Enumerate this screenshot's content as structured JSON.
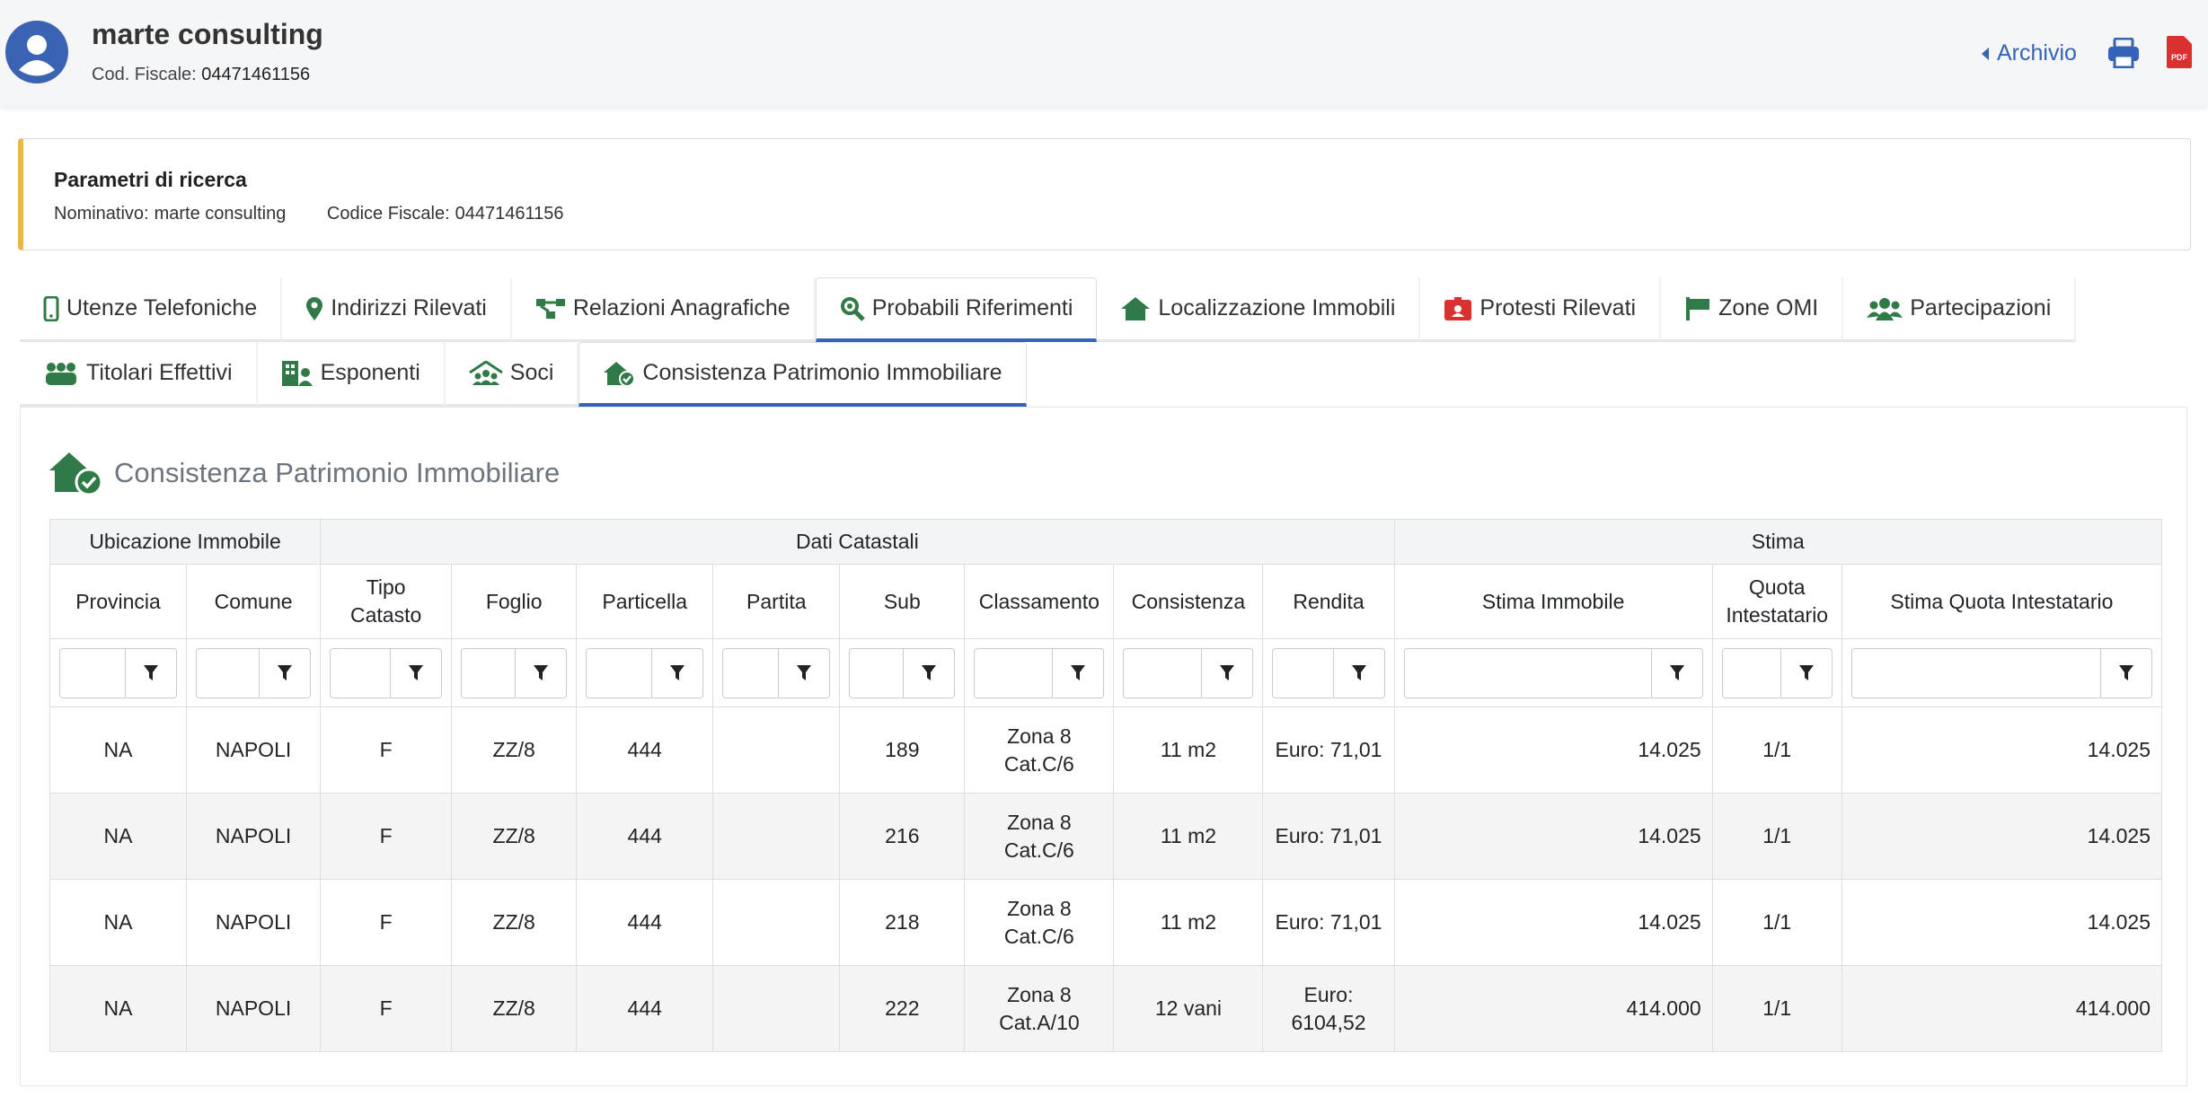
{
  "header": {
    "name": "marte consulting",
    "cf_label": "Cod. Fiscale:",
    "cf": "04471461156",
    "archive": "Archivio",
    "pdf": "PDF"
  },
  "search": {
    "title": "Parametri di ricerca",
    "nominativo_label": "Nominativo:",
    "nominativo": "marte consulting",
    "cf_label": "Codice Fiscale:",
    "cf": "04471461156"
  },
  "tabs": {
    "rows": [
      [
        {
          "label": "Utenze Telefoniche"
        },
        {
          "label": "Indirizzi Rilevati"
        },
        {
          "label": "Relazioni Anagrafiche"
        },
        {
          "label": "Probabili Riferimenti",
          "active": true
        },
        {
          "label": "Localizzazione Immobili"
        },
        {
          "label": "Protesti Rilevati"
        },
        {
          "label": "Zone OMI"
        },
        {
          "label": "Partecipazioni"
        }
      ],
      [
        {
          "label": "Titolari Effettivi"
        },
        {
          "label": "Esponenti"
        },
        {
          "label": "Soci"
        },
        {
          "label": "Consistenza Patrimonio Immobiliare",
          "active": true
        }
      ]
    ]
  },
  "section": {
    "title": "Consistenza Patrimonio Immobiliare"
  },
  "table": {
    "groups": [
      {
        "label": "Ubicazione Immobile",
        "span": 2
      },
      {
        "label": "Dati Catastali",
        "span": 8
      },
      {
        "label": "Stima",
        "span": 3
      }
    ],
    "columns": [
      "Provincia",
      "Comune",
      "Tipo Catasto",
      "Foglio",
      "Particella",
      "Partita",
      "Sub",
      "Classamento",
      "Consistenza",
      "Rendita",
      "Stima Immobile",
      "Quota Intestatario",
      "Stima Quota Intestatario"
    ],
    "rows": [
      [
        "NA",
        "NAPOLI",
        "F",
        "ZZ/8",
        "444",
        null,
        "189",
        "Zona 8 Cat.C/6",
        "11 m2",
        "Euro: 71,01",
        "14.025",
        "1/1",
        "14.025"
      ],
      [
        "NA",
        "NAPOLI",
        "F",
        "ZZ/8",
        "444",
        null,
        "216",
        "Zona 8 Cat.C/6",
        "11 m2",
        "Euro: 71,01",
        "14.025",
        "1/1",
        "14.025"
      ],
      [
        "NA",
        "NAPOLI",
        "F",
        "ZZ/8",
        "444",
        null,
        "218",
        "Zona 8 Cat.C/6",
        "11 m2",
        "Euro: 71,01",
        "14.025",
        "1/1",
        "14.025"
      ],
      [
        "NA",
        "NAPOLI",
        "F",
        "ZZ/8",
        "444",
        null,
        "222",
        "Zona 8 Cat.A/10",
        "12 vani",
        "Euro: 6104,52",
        "414.000",
        "1/1",
        "414.000"
      ]
    ]
  }
}
